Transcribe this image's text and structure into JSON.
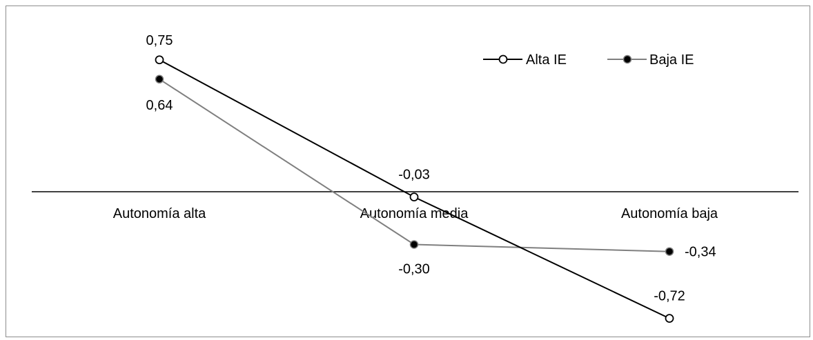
{
  "chart_data": {
    "type": "line",
    "title": "",
    "xlabel": "",
    "ylabel": "",
    "categories": [
      "Autonomía alta",
      "Autonomía media",
      "Autonomía baja"
    ],
    "ylim": [
      -0.8,
      0.85
    ],
    "grid": false,
    "legend_position": "top-right",
    "series": [
      {
        "name": "Alta IE",
        "values": [
          0.75,
          -0.03,
          -0.72
        ],
        "labels": [
          "0,75",
          "-0,03",
          "-0,72"
        ],
        "line_color": "#000000",
        "marker": "open-circle"
      },
      {
        "name": "Baja IE",
        "values": [
          0.64,
          -0.3,
          -0.34
        ],
        "labels": [
          "0,64",
          "-0,30",
          "-0,34"
        ],
        "line_color": "#7f7f7f",
        "marker": "filled-circle"
      }
    ]
  }
}
